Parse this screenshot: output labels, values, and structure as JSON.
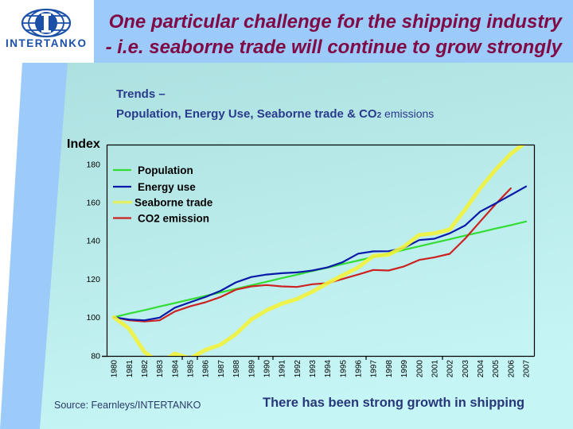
{
  "logo": {
    "text": "INTERTANKO",
    "icon": "globe-icon"
  },
  "header": {
    "title_line1": "One particular challenge for the shipping industry",
    "title_line2": "- i.e. seaborne trade will continue to grow strongly"
  },
  "subtitle": {
    "line1": "Trends –",
    "line2_main": "Population, Energy Use, Seaborne trade & CO",
    "line2_sub": "2",
    "line2_tail": " emissions"
  },
  "footer": {
    "source": "Source: Fearnleys/INTERTANKO",
    "message": "There has been strong growth in shipping"
  },
  "colors": {
    "header_blue": "#9ccbf9",
    "panel_teal_top": "#ade0e0",
    "panel_teal_bottom": "#c6f5f5",
    "title_text": "#800a46",
    "subtitle_text": "#2a3a8c",
    "logo_blue": "#1a50a8"
  },
  "chart_data": {
    "type": "line",
    "title": "Trends – Population, Energy Use, Seaborne trade & CO2 emissions",
    "xlabel": "",
    "ylabel": "Index",
    "x": [
      "1980",
      "1981",
      "1982",
      "1983",
      "1984",
      "1985",
      "1986",
      "1987",
      "1988",
      "1989",
      "1990",
      "1991",
      "1992",
      "1993",
      "1994",
      "1995",
      "1996",
      "1997",
      "1998",
      "1999",
      "2000",
      "2001",
      "2002",
      "2003",
      "2004",
      "2005",
      "2006",
      "2007"
    ],
    "ylim": [
      80,
      190
    ],
    "yticks": [
      80,
      100,
      120,
      140,
      160,
      180
    ],
    "grid": false,
    "legend": "top-left",
    "series": [
      {
        "name": "Population",
        "color": "#33dd33",
        "values": [
          100,
          101.9,
          103.7,
          105.6,
          107.4,
          109.3,
          111.1,
          113,
          114.8,
          116.7,
          118.5,
          120.4,
          122.2,
          124.1,
          125.9,
          127.8,
          129.6,
          131.5,
          133.3,
          135.2,
          137,
          138.9,
          140.7,
          142.6,
          144.4,
          146.3,
          148.1,
          150
        ]
      },
      {
        "name": "Energy use",
        "color": "#0a1aa8",
        "values": [
          100,
          98.8,
          98.4,
          99.8,
          105,
          107.8,
          110.6,
          113.8,
          118.2,
          121,
          122.3,
          123,
          123.4,
          124.4,
          126,
          128.8,
          133.2,
          134.4,
          134.5,
          136.2,
          140.3,
          141,
          143.8,
          147.9,
          155.2,
          159.4,
          163.8,
          168.3
        ]
      },
      {
        "name": "Seaborne trade",
        "color": "#f2f23a",
        "values": [
          100,
          94,
          82,
          76,
          81,
          78.5,
          82.9,
          85.7,
          91.2,
          98.8,
          103.6,
          107.1,
          109.5,
          113.3,
          117.8,
          121.9,
          126,
          132,
          132.7,
          136.8,
          143,
          143.8,
          145.8,
          156.2,
          167.3,
          177,
          185.3,
          191.5
        ]
      },
      {
        "name": "CO2 emission",
        "color": "#cc2222",
        "values": [
          100,
          98.4,
          97.8,
          98.4,
          103,
          105.7,
          107.8,
          110.6,
          114.4,
          116.1,
          116.8,
          116.1,
          115.8,
          117.2,
          117.8,
          120,
          122.3,
          124.7,
          124.4,
          126.5,
          129.9,
          131.3,
          133.1,
          141,
          150,
          159,
          167.3,
          null
        ]
      }
    ]
  }
}
